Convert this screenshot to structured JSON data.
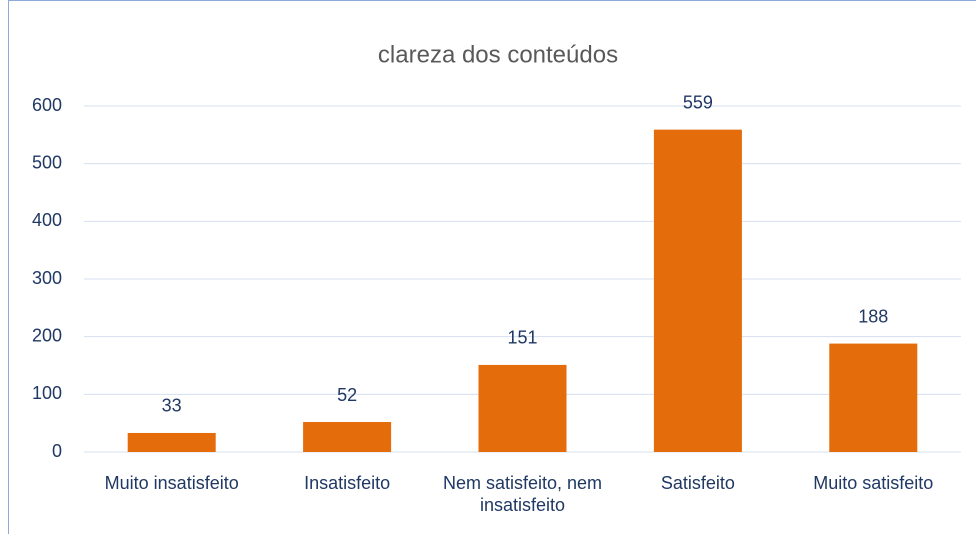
{
  "chart_data": {
    "type": "bar",
    "title": "clareza dos conteúdos",
    "categories": [
      "Muito insatisfeito",
      "Insatisfeito",
      "Nem satisfeito, nem insatisfeito",
      "Satisfeito",
      "Muito satisfeito"
    ],
    "values": [
      33,
      52,
      151,
      559,
      188
    ],
    "color": "#e46c0a",
    "ylim": [
      0,
      600
    ],
    "yticks": [
      0,
      100,
      200,
      300,
      400,
      500,
      600
    ],
    "grid": true
  }
}
